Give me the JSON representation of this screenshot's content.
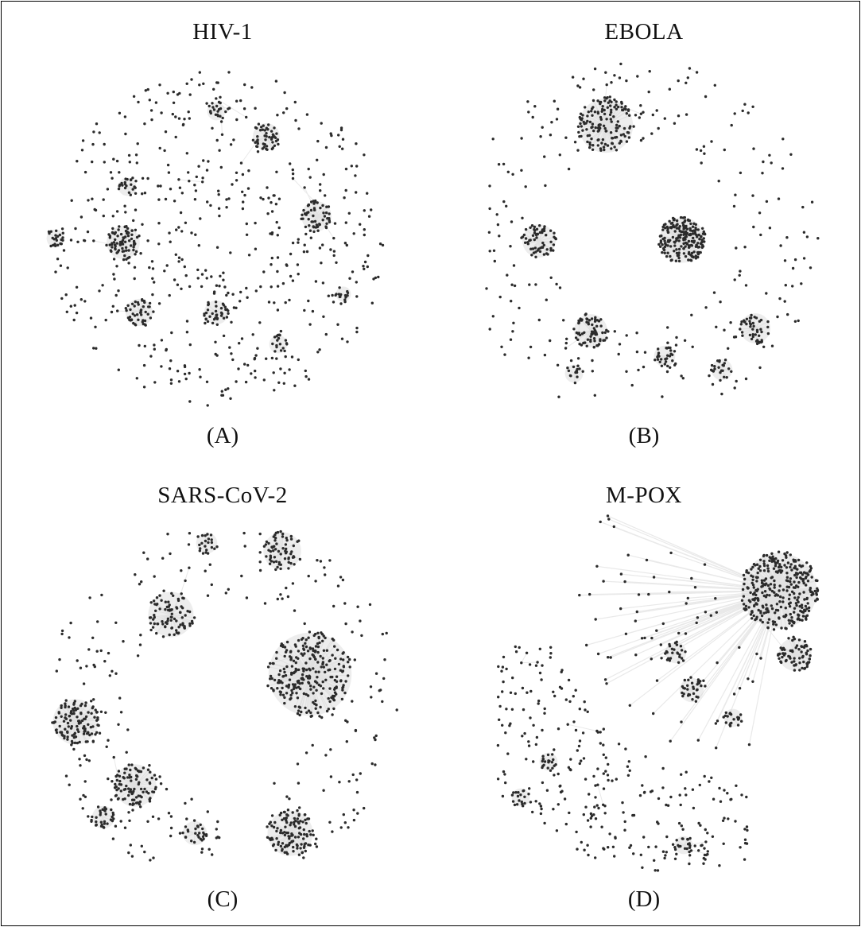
{
  "panels": [
    {
      "id": "A",
      "title": "HIV-1",
      "caption": "(A)"
    },
    {
      "id": "B",
      "title": "EBOLA",
      "caption": "(B)"
    },
    {
      "id": "C",
      "title": "SARS-CoV-2",
      "caption": "(C)"
    },
    {
      "id": "D",
      "title": "M-POX",
      "caption": "(D)"
    }
  ],
  "colors": {
    "node": "#2b2b2b",
    "edge": "#e9e9e9",
    "cluster": "#d6d6d6",
    "frame": "#000000",
    "text": "#111111"
  }
}
